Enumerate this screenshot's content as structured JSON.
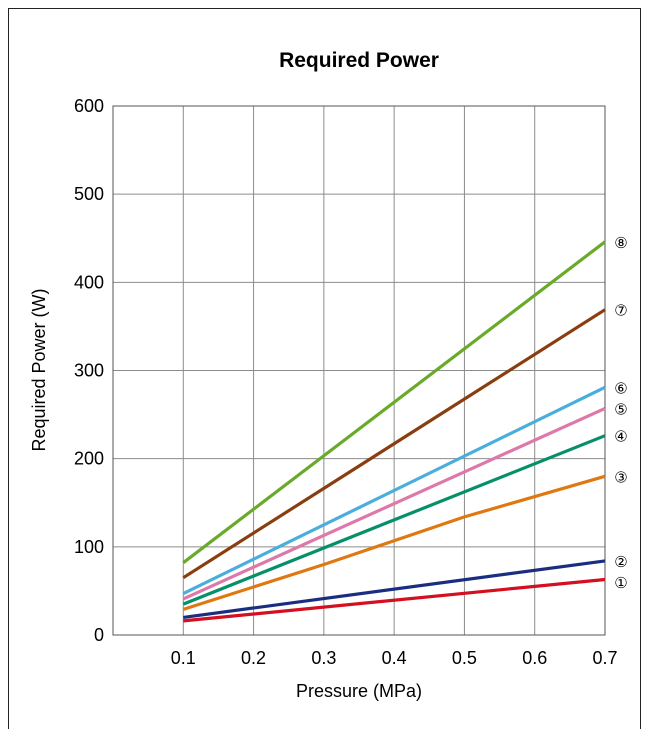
{
  "chart_data": {
    "type": "line",
    "title": "Required Power",
    "xlabel": "Pressure (MPa)",
    "ylabel": "Required Power (W)",
    "xlim": [
      0,
      0.7
    ],
    "ylim": [
      0,
      600
    ],
    "x_ticks": [
      "0.1",
      "0.2",
      "0.3",
      "0.4",
      "0.5",
      "0.6",
      "0.7"
    ],
    "y_ticks": [
      "0",
      "100",
      "200",
      "300",
      "400",
      "500",
      "600"
    ],
    "grid": true,
    "series": [
      {
        "name": "①",
        "color": "#d40f20",
        "points": [
          [
            0.1,
            16
          ],
          [
            0.7,
            63
          ]
        ]
      },
      {
        "name": "②",
        "color": "#1a2d80",
        "points": [
          [
            0.1,
            20
          ],
          [
            0.7,
            84
          ]
        ]
      },
      {
        "name": "③",
        "color": "#e07812",
        "points": [
          [
            0.1,
            29
          ],
          [
            0.3,
            80
          ],
          [
            0.5,
            134
          ],
          [
            0.7,
            180
          ]
        ]
      },
      {
        "name": "④",
        "color": "#06906a",
        "points": [
          [
            0.1,
            35
          ],
          [
            0.7,
            226
          ]
        ]
      },
      {
        "name": "⑤",
        "color": "#dd78a8",
        "points": [
          [
            0.1,
            41
          ],
          [
            0.7,
            257
          ]
        ]
      },
      {
        "name": "⑥",
        "color": "#4aaedc",
        "points": [
          [
            0.1,
            47
          ],
          [
            0.7,
            281
          ]
        ]
      },
      {
        "name": "⑦",
        "color": "#8a3e10",
        "points": [
          [
            0.1,
            65
          ],
          [
            0.7,
            369
          ]
        ]
      },
      {
        "name": "⑧",
        "color": "#6aaa2a",
        "points": [
          [
            0.1,
            82
          ],
          [
            0.7,
            446
          ]
        ]
      }
    ]
  }
}
